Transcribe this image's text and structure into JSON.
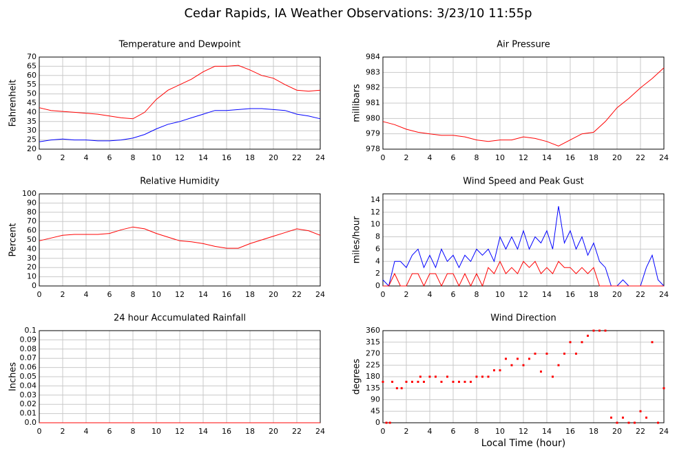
{
  "title": "Cedar Rapids, IA Weather Observations: 3/23/10 11:55p",
  "chart_data": [
    {
      "type": "line",
      "title": "Temperature and Dewpoint",
      "ylabel": "Fahrenheit",
      "grid": true,
      "xlim": [
        0,
        24
      ],
      "xticks": [
        0,
        2,
        4,
        6,
        8,
        10,
        12,
        14,
        16,
        18,
        20,
        22,
        24
      ],
      "ylim": [
        20,
        70
      ],
      "yticks": [
        20,
        25,
        30,
        35,
        40,
        45,
        50,
        55,
        60,
        65,
        70
      ],
      "x": [
        0,
        1,
        2,
        3,
        4,
        5,
        6,
        7,
        8,
        9,
        10,
        11,
        12,
        13,
        14,
        15,
        16,
        17,
        18,
        19,
        20,
        21,
        22,
        23,
        24
      ],
      "series": [
        {
          "color": "#ff0000",
          "values": [
            42.5,
            41,
            40.5,
            40,
            39.5,
            39,
            38,
            37,
            36.5,
            40,
            47,
            52,
            55,
            58,
            62,
            65,
            65,
            65.5,
            63,
            60,
            58.5,
            55,
            52,
            51.5,
            52
          ]
        },
        {
          "color": "#0000ff",
          "values": [
            24,
            25,
            25.5,
            25,
            25,
            24.5,
            24.5,
            25,
            26,
            28,
            31,
            33.5,
            35,
            37,
            39,
            41,
            41,
            41.5,
            42,
            42,
            41.5,
            41,
            39,
            38,
            36.5
          ]
        }
      ]
    },
    {
      "type": "line",
      "title": "Air Pressure",
      "ylabel": "millibars",
      "grid": true,
      "xlim": [
        0,
        24
      ],
      "xticks": [
        0,
        2,
        4,
        6,
        8,
        10,
        12,
        14,
        16,
        18,
        20,
        22,
        24
      ],
      "ylim": [
        978,
        984
      ],
      "yticks": [
        978,
        979,
        980,
        981,
        982,
        983,
        984
      ],
      "x": [
        0,
        1,
        2,
        3,
        4,
        5,
        6,
        7,
        8,
        9,
        10,
        11,
        12,
        13,
        14,
        15,
        16,
        17,
        18,
        19,
        20,
        21,
        22,
        23,
        24
      ],
      "series": [
        {
          "color": "#ff0000",
          "values": [
            979.8,
            979.6,
            979.3,
            979.1,
            979.0,
            978.9,
            978.9,
            978.8,
            978.6,
            978.5,
            978.6,
            978.6,
            978.8,
            978.7,
            978.5,
            978.2,
            978.6,
            979.0,
            979.1,
            979.8,
            980.7,
            981.3,
            982.0,
            982.6,
            983.3
          ]
        }
      ]
    },
    {
      "type": "line",
      "title": "Relative Humidity",
      "ylabel": "Percent",
      "grid": true,
      "xlim": [
        0,
        24
      ],
      "xticks": [
        0,
        2,
        4,
        6,
        8,
        10,
        12,
        14,
        16,
        18,
        20,
        22,
        24
      ],
      "ylim": [
        0,
        100
      ],
      "yticks": [
        0,
        10,
        20,
        30,
        40,
        50,
        60,
        70,
        80,
        90,
        100
      ],
      "x": [
        0,
        1,
        2,
        3,
        4,
        5,
        6,
        7,
        8,
        9,
        10,
        11,
        12,
        13,
        14,
        15,
        16,
        17,
        18,
        19,
        20,
        21,
        22,
        23,
        24
      ],
      "series": [
        {
          "color": "#ff0000",
          "values": [
            49,
            52,
            55,
            56,
            56,
            56,
            57,
            61,
            64,
            62,
            57,
            53,
            49,
            48,
            46,
            43,
            41,
            41,
            46,
            50,
            54,
            58,
            62,
            60,
            55
          ]
        }
      ]
    },
    {
      "type": "line",
      "title": "Wind Speed and Peak Gust",
      "ylabel": "miles/hour",
      "grid": true,
      "xlim": [
        0,
        24
      ],
      "xticks": [
        0,
        2,
        4,
        6,
        8,
        10,
        12,
        14,
        16,
        18,
        20,
        22,
        24
      ],
      "ylim": [
        0,
        15
      ],
      "yticks": [
        0,
        2,
        4,
        6,
        8,
        10,
        12,
        14
      ],
      "x": [
        0,
        0.5,
        1,
        1.5,
        2,
        2.5,
        3,
        3.5,
        4,
        4.5,
        5,
        5.5,
        6,
        6.5,
        7,
        7.5,
        8,
        8.5,
        9,
        9.5,
        10,
        10.5,
        11,
        11.5,
        12,
        12.5,
        13,
        13.5,
        14,
        14.5,
        15,
        15.5,
        16,
        16.5,
        17,
        17.5,
        18,
        18.5,
        19,
        19.5,
        20,
        20.5,
        21,
        21.5,
        22,
        22.5,
        23,
        23.5,
        24
      ],
      "series": [
        {
          "color": "#0000ff",
          "values": [
            1,
            0,
            4,
            4,
            3,
            5,
            6,
            3,
            5,
            3,
            6,
            4,
            5,
            3,
            5,
            4,
            6,
            5,
            6,
            4,
            8,
            6,
            8,
            6,
            9,
            6,
            8,
            7,
            9,
            6,
            13,
            7,
            9,
            6,
            8,
            5,
            7,
            4,
            3,
            0,
            0,
            1,
            0,
            0,
            0,
            3,
            5,
            1,
            0
          ]
        },
        {
          "color": "#ff0000",
          "values": [
            0,
            0,
            2,
            0,
            0,
            2,
            2,
            0,
            2,
            2,
            0,
            2,
            2,
            0,
            2,
            0,
            2,
            0,
            3,
            2,
            4,
            2,
            3,
            2,
            4,
            3,
            4,
            2,
            3,
            2,
            4,
            3,
            3,
            2,
            3,
            2,
            3,
            0,
            0,
            0,
            0,
            0,
            0,
            0,
            0,
            0,
            0,
            0,
            0
          ]
        }
      ]
    },
    {
      "type": "line",
      "title": "24 hour Accumulated Rainfall",
      "ylabel": "Inches",
      "grid": true,
      "xlim": [
        0,
        24
      ],
      "xticks": [
        0,
        2,
        4,
        6,
        8,
        10,
        12,
        14,
        16,
        18,
        20,
        22,
        24
      ],
      "ylim": [
        0,
        0.1
      ],
      "yticks": [
        {
          "value": 0,
          "label": "0.0"
        },
        0.01,
        0.02,
        0.03,
        0.04,
        0.05,
        0.06,
        0.07,
        0.08,
        0.09,
        0.1
      ],
      "x": [
        0,
        24
      ],
      "series": [
        {
          "color": "#ff0000",
          "values": [
            0,
            0
          ]
        }
      ]
    },
    {
      "type": "scatter",
      "title": "Wind Direction",
      "ylabel": "degrees",
      "xlabel": "Local Time (hour)",
      "grid": true,
      "xlim": [
        0,
        24
      ],
      "xticks": [
        0,
        2,
        4,
        6,
        8,
        10,
        12,
        14,
        16,
        18,
        20,
        22,
        24
      ],
      "ylim": [
        0,
        360
      ],
      "yticks": [
        0,
        45,
        90,
        135,
        180,
        225,
        270,
        315,
        360
      ],
      "x": [
        0,
        0.3,
        0.6,
        0.8,
        1.2,
        1.6,
        2,
        2.5,
        3,
        3.2,
        3.5,
        4,
        4.5,
        5,
        5.5,
        6,
        6.5,
        7,
        7.5,
        8,
        8.5,
        9,
        9.5,
        10,
        10.5,
        11,
        11.5,
        12,
        12.5,
        13,
        13.5,
        14,
        14.5,
        15,
        15.5,
        16,
        16.5,
        17,
        17.5,
        18,
        18.5,
        19,
        19.5,
        20,
        20.5,
        21,
        21.5,
        22,
        22.5,
        23,
        23.5,
        24
      ],
      "series": [
        {
          "color": "#ff0000",
          "values": [
            160,
            0,
            0,
            160,
            135,
            135,
            160,
            160,
            160,
            180,
            160,
            180,
            180,
            160,
            180,
            160,
            160,
            160,
            160,
            180,
            180,
            180,
            205,
            205,
            250,
            225,
            250,
            225,
            250,
            270,
            200,
            270,
            180,
            225,
            270,
            315,
            270,
            315,
            340,
            360,
            360,
            360,
            20,
            0,
            20,
            0,
            0,
            45,
            20,
            315,
            0,
            135
          ]
        }
      ]
    }
  ]
}
